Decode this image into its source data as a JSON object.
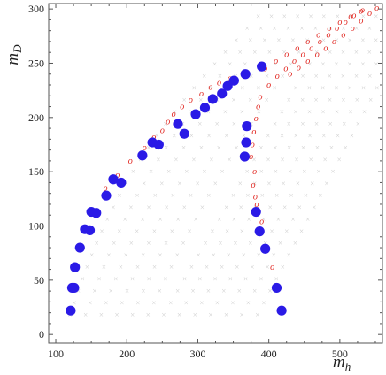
{
  "chart_data": {
    "type": "scatter",
    "xlabel": "m",
    "xlabel_sub": "h",
    "ylabel": "m",
    "ylabel_sub": "D",
    "xlim": [
      90,
      560
    ],
    "ylim": [
      -8,
      305
    ],
    "x_ticks": [
      100,
      200,
      300,
      400,
      500
    ],
    "y_ticks": [
      0,
      50,
      100,
      150,
      200,
      250,
      300
    ],
    "grid": false,
    "legend": "none",
    "colors": {
      "blue": "#2a1ae6",
      "red": "#e0201a",
      "ghost": "#cfcfcf",
      "axis": "#555555"
    },
    "series": [
      {
        "marker": "circle",
        "color": "#2a1ae6",
        "points": [
          [
            121,
            22
          ],
          [
            123,
            43
          ],
          [
            126,
            43
          ],
          [
            127,
            62
          ],
          [
            134,
            80
          ],
          [
            141,
            97
          ],
          [
            148,
            96
          ],
          [
            150,
            113
          ],
          [
            157,
            112
          ],
          [
            171,
            128
          ],
          [
            181,
            143
          ],
          [
            192,
            140
          ],
          [
            222,
            165
          ],
          [
            236,
            177
          ],
          [
            245,
            175
          ],
          [
            272,
            194
          ],
          [
            281,
            185
          ],
          [
            297,
            203
          ],
          [
            310,
            209
          ],
          [
            321,
            217
          ],
          [
            334,
            222
          ],
          [
            342,
            229
          ],
          [
            351,
            234
          ],
          [
            367,
            240
          ],
          [
            390,
            247
          ],
          [
            369,
            192
          ],
          [
            368,
            177
          ],
          [
            366,
            164
          ],
          [
            382,
            113
          ],
          [
            387,
            95
          ],
          [
            395,
            79
          ],
          [
            411,
            43
          ],
          [
            418,
            22
          ]
        ]
      },
      {
        "marker": "o",
        "color": "#e0201a",
        "points": [
          [
            375,
            164
          ],
          [
            377,
            175
          ],
          [
            379,
            187
          ],
          [
            382,
            199
          ],
          [
            385,
            210
          ],
          [
            388,
            219
          ],
          [
            380,
            150
          ],
          [
            378,
            138
          ],
          [
            381,
            127
          ],
          [
            383,
            120
          ],
          [
            390,
            104
          ],
          [
            405,
            62
          ],
          [
            430,
            240
          ],
          [
            442,
            246
          ],
          [
            455,
            252
          ],
          [
            468,
            258
          ],
          [
            480,
            264
          ],
          [
            492,
            270
          ],
          [
            505,
            276
          ],
          [
            518,
            282
          ],
          [
            530,
            289
          ],
          [
            542,
            296
          ],
          [
            552,
            301
          ],
          [
            400,
            230
          ],
          [
            412,
            238
          ],
          [
            424,
            245
          ],
          [
            436,
            252
          ],
          [
            448,
            258
          ],
          [
            460,
            264
          ],
          [
            472,
            270
          ],
          [
            484,
            276
          ],
          [
            496,
            282
          ],
          [
            508,
            288
          ],
          [
            520,
            294
          ],
          [
            532,
            299
          ],
          [
            395,
            245
          ],
          [
            410,
            252
          ],
          [
            425,
            258
          ],
          [
            440,
            264
          ],
          [
            455,
            270
          ],
          [
            470,
            276
          ],
          [
            485,
            282
          ],
          [
            500,
            288
          ],
          [
            515,
            293
          ],
          [
            530,
            298
          ],
          [
            170,
            135
          ],
          [
            187,
            147
          ],
          [
            205,
            160
          ],
          [
            225,
            172
          ],
          [
            238,
            182
          ],
          [
            250,
            188
          ],
          [
            258,
            196
          ],
          [
            266,
            203
          ],
          [
            278,
            210
          ],
          [
            290,
            216
          ],
          [
            305,
            222
          ],
          [
            318,
            228
          ],
          [
            330,
            232
          ],
          [
            345,
            236
          ]
        ]
      }
    ]
  }
}
